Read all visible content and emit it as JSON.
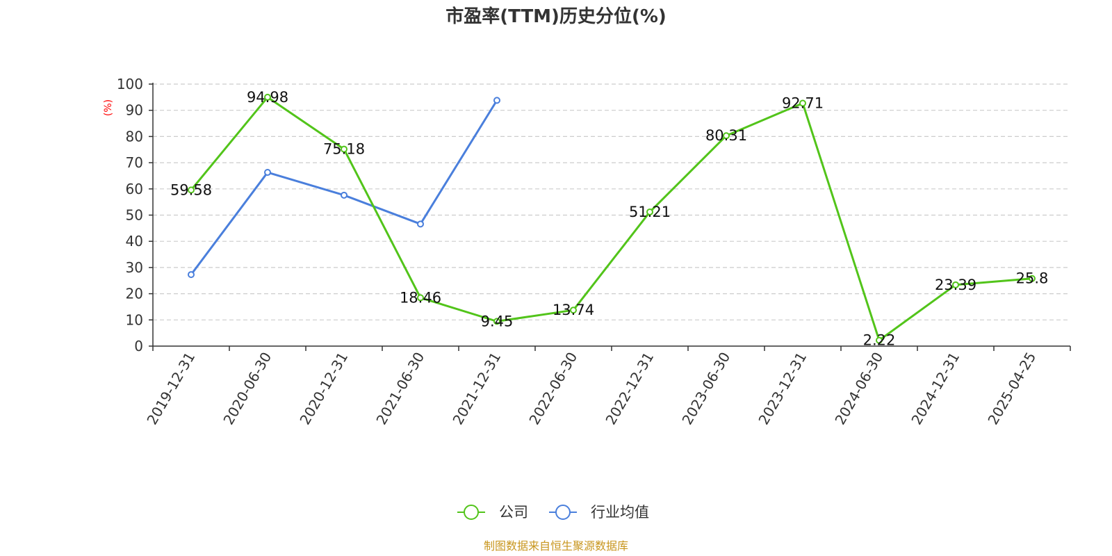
{
  "chart_data": {
    "type": "line",
    "title": "市盈率(TTM)历史分位(%)",
    "ylabel": "(%)",
    "ylim": [
      0,
      100
    ],
    "y_ticks": [
      0,
      10,
      20,
      30,
      40,
      50,
      60,
      70,
      80,
      90,
      100
    ],
    "categories": [
      "2019-12-31",
      "2020-06-30",
      "2020-12-31",
      "2021-06-30",
      "2021-12-31",
      "2022-06-30",
      "2022-12-31",
      "2023-06-30",
      "2023-12-31",
      "2024-06-30",
      "2024-12-31",
      "2025-04-25"
    ],
    "grid": true,
    "legend_position": "bottom",
    "series": [
      {
        "name": "公司",
        "color": "#52c41a",
        "values": [
          59.58,
          94.98,
          75.18,
          18.46,
          9.45,
          13.74,
          51.21,
          80.31,
          92.71,
          2.22,
          23.39,
          25.8
        ],
        "labels": [
          "59.58",
          "94.98",
          "75.18",
          "18.46",
          "9.45",
          "13.74",
          "51.21",
          "80.31",
          "92.71",
          "2.22",
          "23.39",
          "25.8"
        ],
        "show_labels": true
      },
      {
        "name": "行业均值",
        "color": "#4a7fdc",
        "values": [
          27.3,
          66.3,
          57.6,
          46.6,
          93.8,
          null,
          null,
          null,
          null,
          null,
          null,
          null
        ],
        "show_labels": false
      }
    ]
  },
  "colors": {
    "axis": "#333333",
    "grid": "#cccccc",
    "unit_label": "#ff0000",
    "footer": "#c8961e"
  },
  "footer": {
    "source_text": "制图数据来自恒生聚源数据库"
  }
}
